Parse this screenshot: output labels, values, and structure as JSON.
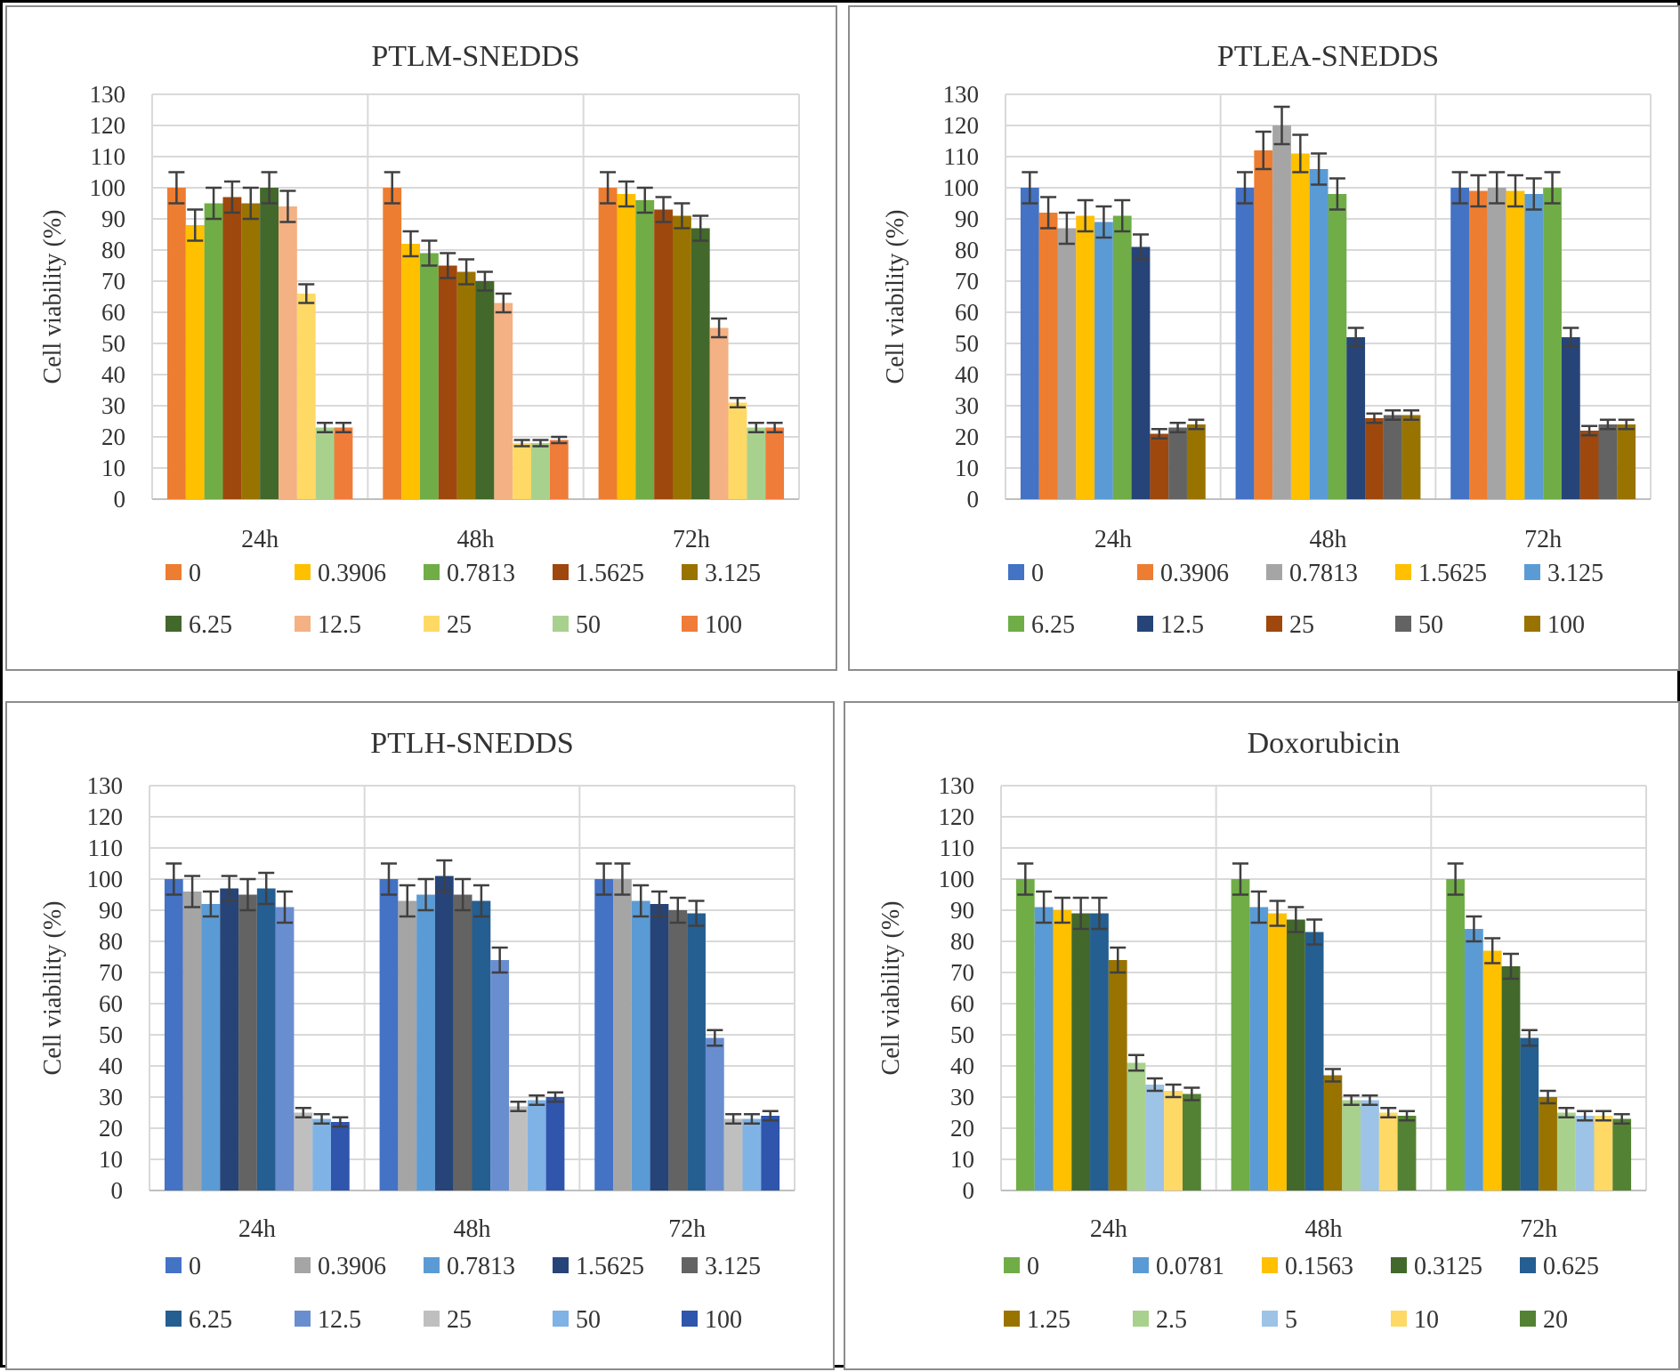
{
  "chart_data": [
    {
      "type": "bar",
      "title": "PTLM-SNEDDS",
      "xlabel": "",
      "ylabel": "Cell viability (%)",
      "ylim": [
        0,
        130
      ],
      "yticks": [
        0,
        10,
        20,
        30,
        40,
        50,
        60,
        70,
        80,
        90,
        100,
        110,
        120,
        130
      ],
      "categories": [
        "24h",
        "48h",
        "72h"
      ],
      "grid": true,
      "legend_position": "bottom",
      "error_bars": true,
      "series": [
        {
          "name": "0",
          "color": "#ED7D31",
          "values": [
            100,
            100,
            100
          ],
          "errors": [
            5,
            5,
            5
          ]
        },
        {
          "name": "0.3906",
          "color": "#FFC000",
          "values": [
            88,
            82,
            98
          ],
          "errors": [
            5,
            4,
            4
          ]
        },
        {
          "name": "0.7813",
          "color": "#70AD47",
          "values": [
            95,
            79,
            96
          ],
          "errors": [
            5,
            4,
            4
          ]
        },
        {
          "name": "1.5625",
          "color": "#9E480E",
          "values": [
            97,
            75,
            93
          ],
          "errors": [
            5,
            4,
            4
          ]
        },
        {
          "name": "3.125",
          "color": "#997300",
          "values": [
            95,
            73,
            91
          ],
          "errors": [
            5,
            4,
            4
          ]
        },
        {
          "name": "6.25",
          "color": "#43682B",
          "values": [
            100,
            70,
            87
          ],
          "errors": [
            5,
            3,
            4
          ]
        },
        {
          "name": "12.5",
          "color": "#F4B183",
          "values": [
            94,
            63,
            55
          ],
          "errors": [
            5,
            3,
            3
          ]
        },
        {
          "name": "25",
          "color": "#FFD966",
          "values": [
            66,
            18,
            31
          ],
          "errors": [
            3,
            1,
            1.5
          ]
        },
        {
          "name": "50",
          "color": "#A9D18E",
          "values": [
            23,
            18,
            23
          ],
          "errors": [
            1.5,
            1,
            1.5
          ]
        },
        {
          "name": "100",
          "color": "#F07C3A",
          "values": [
            23,
            19,
            23
          ],
          "errors": [
            1.5,
            1,
            1.5
          ]
        }
      ]
    },
    {
      "type": "bar",
      "title": "PTLEA-SNEDDS",
      "xlabel": "",
      "ylabel": "Cell viability (%)",
      "ylim": [
        0,
        130
      ],
      "yticks": [
        0,
        10,
        20,
        30,
        40,
        50,
        60,
        70,
        80,
        90,
        100,
        110,
        120,
        130
      ],
      "categories": [
        "24h",
        "48h",
        "72h"
      ],
      "grid": true,
      "legend_position": "bottom",
      "error_bars": true,
      "series": [
        {
          "name": "0",
          "color": "#4472C4",
          "values": [
            100,
            100,
            100
          ],
          "errors": [
            5,
            5,
            5
          ]
        },
        {
          "name": "0.3906",
          "color": "#ED7D31",
          "values": [
            92,
            112,
            99
          ],
          "errors": [
            5,
            6,
            5
          ]
        },
        {
          "name": "0.7813",
          "color": "#A5A5A5",
          "values": [
            87,
            120,
            100
          ],
          "errors": [
            5,
            6,
            5
          ]
        },
        {
          "name": "1.5625",
          "color": "#FFC000",
          "values": [
            91,
            111,
            99
          ],
          "errors": [
            5,
            6,
            5
          ]
        },
        {
          "name": "3.125",
          "color": "#5B9BD5",
          "values": [
            89,
            106,
            98
          ],
          "errors": [
            5,
            5,
            5
          ]
        },
        {
          "name": "6.25",
          "color": "#70AD47",
          "values": [
            91,
            98,
            100
          ],
          "errors": [
            5,
            5,
            5
          ]
        },
        {
          "name": "12.5",
          "color": "#264478",
          "values": [
            81,
            52,
            52
          ],
          "errors": [
            4,
            3,
            3
          ]
        },
        {
          "name": "25",
          "color": "#9E480E",
          "values": [
            21,
            26,
            22
          ],
          "errors": [
            1.5,
            1.5,
            1.5
          ]
        },
        {
          "name": "50",
          "color": "#636363",
          "values": [
            23,
            27,
            24
          ],
          "errors": [
            1.5,
            1.5,
            1.5
          ]
        },
        {
          "name": "100",
          "color": "#997300",
          "values": [
            24,
            27,
            24
          ],
          "errors": [
            1.5,
            1.5,
            1.5
          ]
        }
      ]
    },
    {
      "type": "bar",
      "title": "PTLH-SNEDDS",
      "xlabel": "",
      "ylabel": "Cell viability (%)",
      "ylim": [
        0,
        130
      ],
      "yticks": [
        0,
        10,
        20,
        30,
        40,
        50,
        60,
        70,
        80,
        90,
        100,
        110,
        120,
        130
      ],
      "categories": [
        "24h",
        "48h",
        "72h"
      ],
      "grid": true,
      "legend_position": "bottom",
      "error_bars": true,
      "series": [
        {
          "name": "0",
          "color": "#4472C4",
          "values": [
            100,
            100,
            100
          ],
          "errors": [
            5,
            5,
            5
          ]
        },
        {
          "name": "0.3906",
          "color": "#A5A5A5",
          "values": [
            96,
            93,
            100
          ],
          "errors": [
            5,
            5,
            5
          ]
        },
        {
          "name": "0.7813",
          "color": "#5B9BD5",
          "values": [
            92,
            95,
            93
          ],
          "errors": [
            4,
            5,
            5
          ]
        },
        {
          "name": "1.5625",
          "color": "#264478",
          "values": [
            97,
            101,
            92
          ],
          "errors": [
            4,
            5,
            4
          ]
        },
        {
          "name": "3.125",
          "color": "#636363",
          "values": [
            95,
            95,
            90
          ],
          "errors": [
            5,
            5,
            4
          ]
        },
        {
          "name": "6.25",
          "color": "#255E91",
          "values": [
            97,
            93,
            89
          ],
          "errors": [
            5,
            5,
            4
          ]
        },
        {
          "name": "12.5",
          "color": "#698ED0",
          "values": [
            91,
            74,
            49
          ],
          "errors": [
            5,
            4,
            2.5
          ]
        },
        {
          "name": "25",
          "color": "#BFBFBF",
          "values": [
            25,
            27,
            23
          ],
          "errors": [
            1.5,
            1.5,
            1.5
          ]
        },
        {
          "name": "50",
          "color": "#7FB2E5",
          "values": [
            23,
            29,
            23
          ],
          "errors": [
            1.5,
            1.5,
            1.5
          ]
        },
        {
          "name": "100",
          "color": "#2F55AC",
          "values": [
            22,
            30,
            24
          ],
          "errors": [
            1.5,
            1.5,
            1.5
          ]
        }
      ]
    },
    {
      "type": "bar",
      "title": "Doxorubicin",
      "xlabel": "",
      "ylabel": "Cell viability (%)",
      "ylim": [
        0,
        130
      ],
      "yticks": [
        0,
        10,
        20,
        30,
        40,
        50,
        60,
        70,
        80,
        90,
        100,
        110,
        120,
        130
      ],
      "categories": [
        "24h",
        "48h",
        "72h"
      ],
      "grid": true,
      "legend_position": "bottom",
      "error_bars": true,
      "series": [
        {
          "name": "0",
          "color": "#70AD47",
          "values": [
            100,
            100,
            100
          ],
          "errors": [
            5,
            5,
            5
          ]
        },
        {
          "name": "0.0781",
          "color": "#5B9BD5",
          "values": [
            91,
            91,
            84
          ],
          "errors": [
            5,
            5,
            4
          ]
        },
        {
          "name": "0.1563",
          "color": "#FFC000",
          "values": [
            90,
            89,
            77
          ],
          "errors": [
            4,
            4,
            4
          ]
        },
        {
          "name": "0.3125",
          "color": "#43682B",
          "values": [
            89,
            87,
            72
          ],
          "errors": [
            5,
            4,
            4
          ]
        },
        {
          "name": "0.625",
          "color": "#255E91",
          "values": [
            89,
            83,
            49
          ],
          "errors": [
            5,
            4,
            2.5
          ]
        },
        {
          "name": "1.25",
          "color": "#997300",
          "values": [
            74,
            37,
            30
          ],
          "errors": [
            4,
            2,
            2
          ]
        },
        {
          "name": "2.5",
          "color": "#A9D18E",
          "values": [
            41,
            29,
            25
          ],
          "errors": [
            2.5,
            1.5,
            1.5
          ]
        },
        {
          "name": "5",
          "color": "#9DC3E6",
          "values": [
            34,
            29,
            24
          ],
          "errors": [
            2,
            1.5,
            1.5
          ]
        },
        {
          "name": "10",
          "color": "#FFD966",
          "values": [
            32,
            25,
            24
          ],
          "errors": [
            2,
            1.5,
            1.5
          ]
        },
        {
          "name": "20",
          "color": "#548235",
          "values": [
            31,
            24,
            23
          ],
          "errors": [
            2,
            1.5,
            1.5
          ]
        }
      ]
    }
  ]
}
